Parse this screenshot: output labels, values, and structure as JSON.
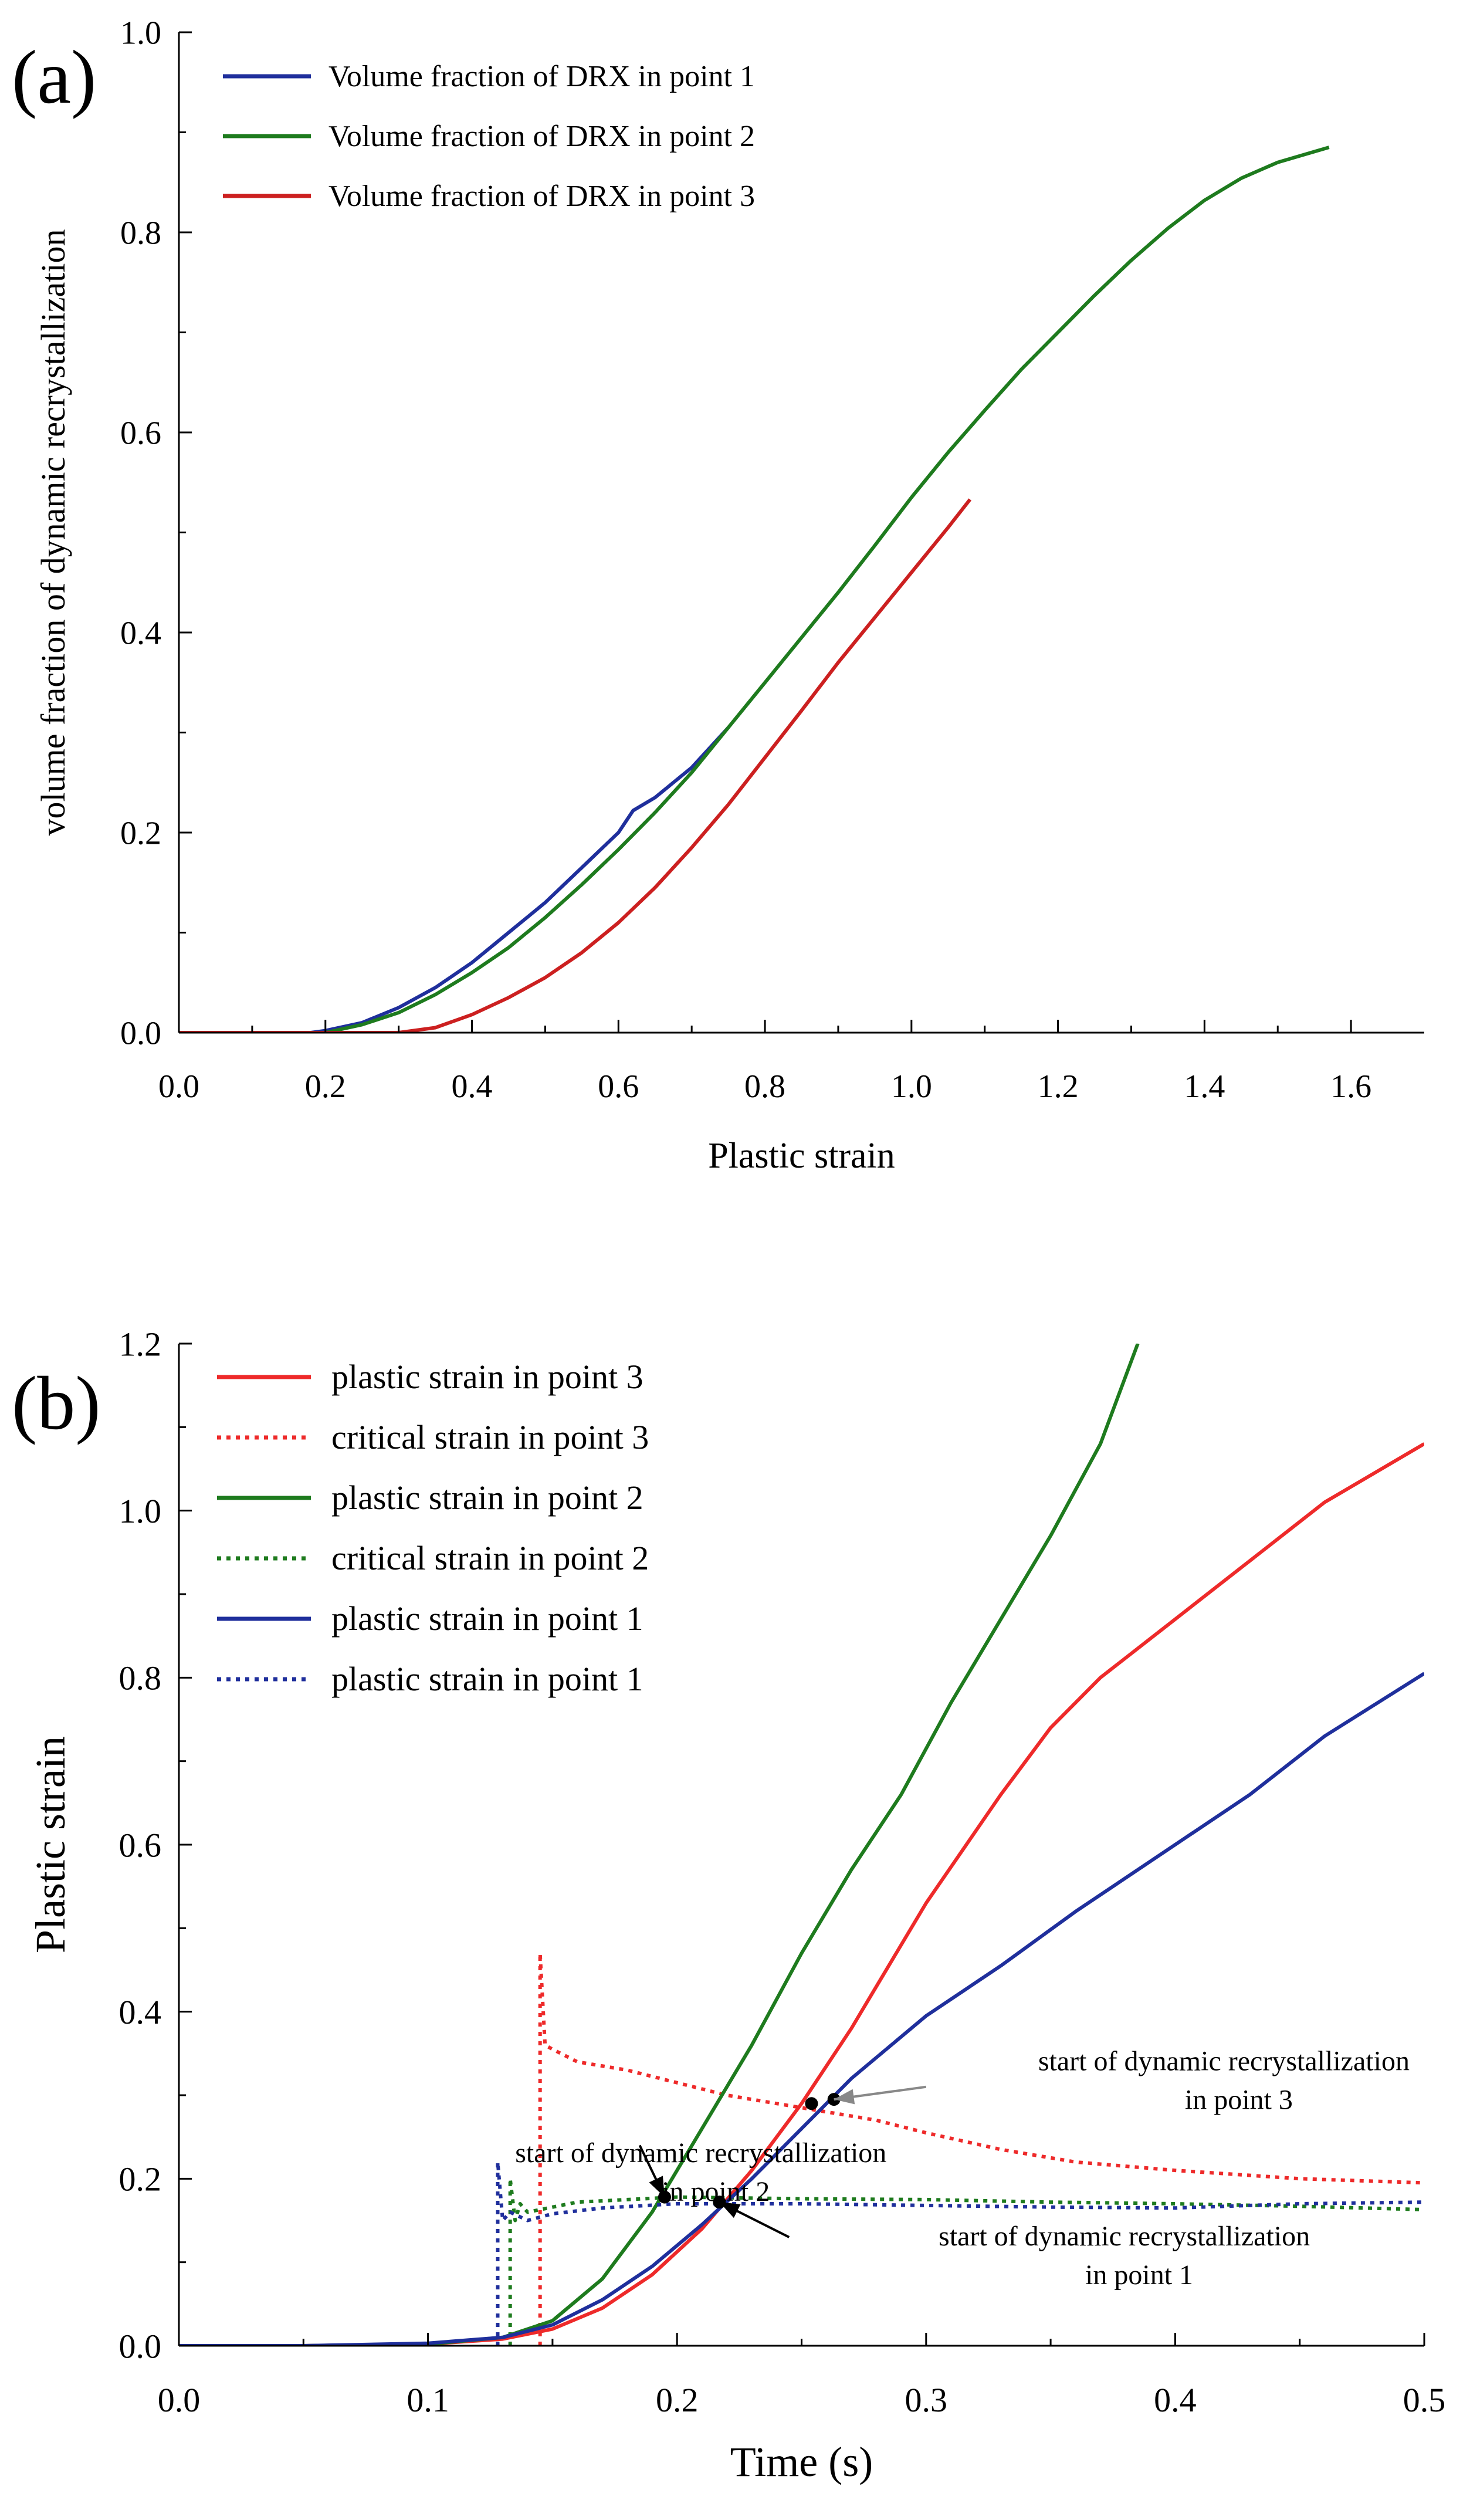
{
  "chart_data": [
    {
      "type": "line",
      "panel_label": "(a)",
      "xlabel": "Plastic strain",
      "ylabel": "volume fraction of dynamic recrystallization",
      "xlim": [
        0,
        1.7
      ],
      "ylim": [
        0,
        1.0
      ],
      "xticks": [
        0.0,
        0.2,
        0.4,
        0.6,
        0.8,
        1.0,
        1.2,
        1.4,
        1.6
      ],
      "xtick_labels": [
        "0.0",
        "0.2",
        "0.4",
        "0.6",
        "0.8",
        "1.0",
        "1.2",
        "1.4",
        "1.6"
      ],
      "yticks": [
        0.0,
        0.2,
        0.4,
        0.6,
        0.8,
        1.0
      ],
      "ytick_labels": [
        "0.0",
        "0.2",
        "0.4",
        "0.6",
        "0.8",
        "1.0"
      ],
      "legend_position": "top-left",
      "series": [
        {
          "name": "Volume fraction of DRX in point 1",
          "color": "#1f2f9c",
          "style": "solid",
          "x": [
            0.0,
            0.18,
            0.2,
            0.25,
            0.3,
            0.35,
            0.4,
            0.45,
            0.5,
            0.55,
            0.6,
            0.62,
            0.65,
            0.7,
            0.75
          ],
          "y": [
            0.0,
            0.0,
            0.002,
            0.01,
            0.025,
            0.045,
            0.07,
            0.1,
            0.13,
            0.165,
            0.2,
            0.222,
            0.235,
            0.265,
            0.305
          ]
        },
        {
          "name": "Volume fraction of DRX in point 2",
          "color": "#1e7b1e",
          "style": "solid",
          "x": [
            0.0,
            0.2,
            0.25,
            0.3,
            0.35,
            0.4,
            0.45,
            0.5,
            0.55,
            0.6,
            0.65,
            0.7,
            0.75,
            0.8,
            0.85,
            0.9,
            0.95,
            1.0,
            1.05,
            1.1,
            1.15,
            1.2,
            1.25,
            1.3,
            1.35,
            1.4,
            1.45,
            1.5,
            1.57
          ],
          "y": [
            0.0,
            0.0,
            0.008,
            0.02,
            0.038,
            0.06,
            0.085,
            0.115,
            0.148,
            0.183,
            0.22,
            0.26,
            0.305,
            0.35,
            0.395,
            0.44,
            0.487,
            0.535,
            0.58,
            0.622,
            0.663,
            0.7,
            0.737,
            0.772,
            0.804,
            0.832,
            0.854,
            0.87,
            0.885
          ]
        },
        {
          "name": "Volume fraction of DRX in point 3",
          "color": "#cc2020",
          "style": "solid",
          "x": [
            0.0,
            0.3,
            0.35,
            0.4,
            0.45,
            0.5,
            0.55,
            0.6,
            0.65,
            0.7,
            0.75,
            0.8,
            0.85,
            0.9,
            0.95,
            1.0,
            1.05,
            1.08
          ],
          "y": [
            0.0,
            0.0,
            0.005,
            0.018,
            0.035,
            0.055,
            0.08,
            0.11,
            0.145,
            0.185,
            0.228,
            0.275,
            0.322,
            0.37,
            0.415,
            0.46,
            0.505,
            0.533
          ]
        }
      ]
    },
    {
      "type": "line",
      "panel_label": "(b)",
      "xlabel": "Time (s)",
      "ylabel": "Plastic strain",
      "xlim": [
        0,
        0.5
      ],
      "ylim": [
        0,
        1.2
      ],
      "xticks": [
        0.0,
        0.1,
        0.2,
        0.3,
        0.4,
        0.5
      ],
      "xtick_labels": [
        "0.0",
        "0.1",
        "0.2",
        "0.3",
        "0.4",
        "0.5"
      ],
      "yticks": [
        0.0,
        0.2,
        0.4,
        0.6,
        0.8,
        1.0,
        1.2
      ],
      "ytick_labels": [
        "0.0",
        "0.2",
        "0.4",
        "0.6",
        "0.8",
        "1.0",
        "1.2"
      ],
      "legend_position": "top-left",
      "series": [
        {
          "name": "plastic strain in point 3",
          "color": "#ee2a2a",
          "style": "solid",
          "x": [
            0.0,
            0.05,
            0.1,
            0.13,
            0.15,
            0.17,
            0.19,
            0.21,
            0.23,
            0.25,
            0.27,
            0.3,
            0.33,
            0.35,
            0.37,
            0.4,
            0.43,
            0.46,
            0.5
          ],
          "y": [
            0.0,
            0.0,
            0.002,
            0.008,
            0.02,
            0.045,
            0.085,
            0.14,
            0.21,
            0.29,
            0.38,
            0.53,
            0.66,
            0.74,
            0.8,
            0.87,
            0.94,
            1.01,
            1.08
          ]
        },
        {
          "name": "critical strain in point 3",
          "color": "#ee2a2a",
          "style": "dotted",
          "x": [
            0.145,
            0.145,
            0.147,
            0.15,
            0.16,
            0.18,
            0.2,
            0.22,
            0.25,
            0.28,
            0.3,
            0.33,
            0.36,
            0.4,
            0.45,
            0.5
          ],
          "y": [
            0.0,
            0.47,
            0.36,
            0.355,
            0.34,
            0.33,
            0.315,
            0.3,
            0.285,
            0.27,
            0.255,
            0.235,
            0.22,
            0.21,
            0.2,
            0.195
          ]
        },
        {
          "name": "plastic strain in point 2",
          "color": "#1e7b1e",
          "style": "solid",
          "x": [
            0.0,
            0.05,
            0.1,
            0.13,
            0.15,
            0.17,
            0.19,
            0.21,
            0.23,
            0.25,
            0.27,
            0.29,
            0.31,
            0.33,
            0.35,
            0.37,
            0.385
          ],
          "y": [
            0.0,
            0.0,
            0.002,
            0.01,
            0.03,
            0.08,
            0.16,
            0.26,
            0.36,
            0.47,
            0.57,
            0.66,
            0.77,
            0.87,
            0.97,
            1.08,
            1.2
          ]
        },
        {
          "name": "critical strain in point 2",
          "color": "#1e7b1e",
          "style": "dotted",
          "x": [
            0.133,
            0.133,
            0.135,
            0.137,
            0.14,
            0.16,
            0.18,
            0.2,
            0.25,
            0.3,
            0.35,
            0.4,
            0.45,
            0.5
          ],
          "y": [
            0.0,
            0.2,
            0.15,
            0.17,
            0.16,
            0.172,
            0.175,
            0.178,
            0.176,
            0.175,
            0.172,
            0.17,
            0.167,
            0.163
          ]
        },
        {
          "name": "plastic strain in point 1",
          "color": "#1f2f9c",
          "style": "solid",
          "x": [
            0.0,
            0.05,
            0.1,
            0.13,
            0.15,
            0.17,
            0.19,
            0.21,
            0.23,
            0.25,
            0.27,
            0.3,
            0.33,
            0.36,
            0.4,
            0.43,
            0.46,
            0.5
          ],
          "y": [
            0.0,
            0.0,
            0.003,
            0.01,
            0.025,
            0.055,
            0.095,
            0.145,
            0.2,
            0.26,
            0.32,
            0.395,
            0.455,
            0.52,
            0.6,
            0.66,
            0.73,
            0.805
          ]
        },
        {
          "name": "plastic strain in point 1",
          "color": "#1f2f9c",
          "style": "dotted",
          "x": [
            0.128,
            0.128,
            0.13,
            0.133,
            0.14,
            0.15,
            0.17,
            0.2,
            0.25,
            0.3,
            0.35,
            0.4,
            0.45,
            0.5
          ],
          "y": [
            0.0,
            0.22,
            0.15,
            0.16,
            0.15,
            0.158,
            0.165,
            0.17,
            0.17,
            0.168,
            0.166,
            0.165,
            0.17,
            0.172
          ]
        }
      ],
      "markers": [
        {
          "x": 0.195,
          "y": 0.178
        },
        {
          "x": 0.217,
          "y": 0.172
        },
        {
          "x": 0.254,
          "y": 0.29
        },
        {
          "x": 0.263,
          "y": 0.295
        }
      ],
      "annotations": [
        {
          "lines": [
            "start of dynamic recrystallization",
            "in point 3"
          ],
          "target": {
            "x": 0.263,
            "y": 0.295
          },
          "anchor": {
            "x": 0.3,
            "y": 0.31
          },
          "text_x": 0.345,
          "text_y": 0.33,
          "arrow_color": "#888888"
        },
        {
          "lines": [
            "start of dynamic recrystallization",
            "in point 2"
          ],
          "target": {
            "x": 0.195,
            "y": 0.178
          },
          "anchor": {
            "x": 0.185,
            "y": 0.24
          },
          "text_x": 0.135,
          "text_y": 0.22,
          "arrow_color": "#000000"
        },
        {
          "lines": [
            "start of dynamic recrystallization",
            "in point 1"
          ],
          "target": {
            "x": 0.217,
            "y": 0.172
          },
          "anchor": {
            "x": 0.245,
            "y": 0.13
          },
          "text_x": 0.305,
          "text_y": 0.12,
          "arrow_color": "#000000"
        }
      ]
    }
  ]
}
